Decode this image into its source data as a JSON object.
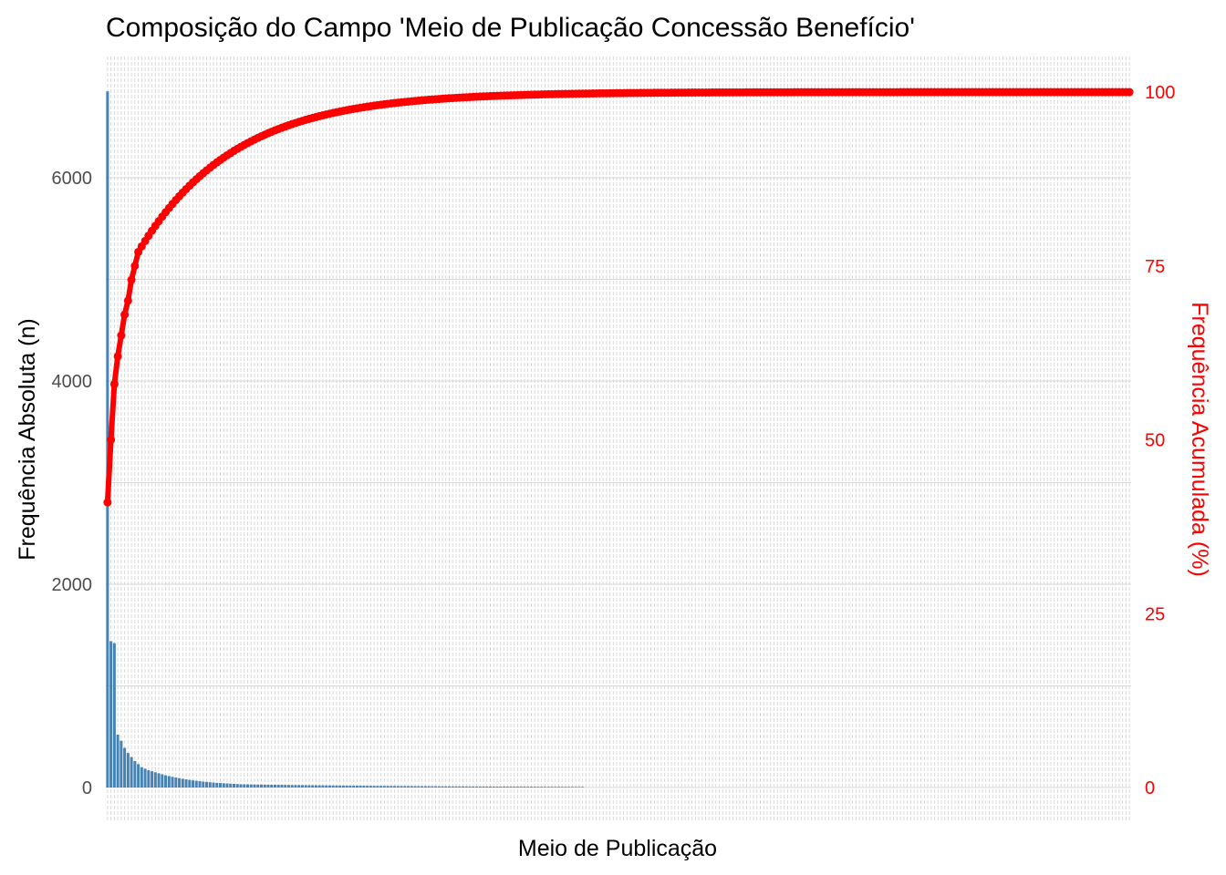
{
  "chart_data": {
    "type": "bar+line",
    "title": "Composição do Campo 'Meio de Publicação Concessão Benefício'",
    "xlabel": "Meio de Publicação",
    "ylabel_left": "Frequência Absoluta (n)",
    "ylabel_right": "Frequência Acumulada (%)",
    "ylim_left": [
      0,
      6900
    ],
    "ylim_right": [
      0,
      100
    ],
    "y_left_ticks": [
      "0",
      "2000",
      "4000",
      "6000"
    ],
    "y_right_ticks": [
      "0",
      "25",
      "50",
      "75",
      "100"
    ],
    "category_count": 300,
    "grid": true,
    "bar_color": "#4682b4",
    "line_color": "#ff0000",
    "grid_color": "#d9d9d9",
    "bar_values_head": [
      6850,
      1440,
      1420,
      520,
      460,
      390,
      340,
      300,
      260,
      230,
      200,
      185,
      170,
      160,
      150,
      140,
      130,
      120,
      112,
      105,
      98,
      92,
      86,
      80,
      75,
      70,
      66,
      62,
      58,
      55,
      52,
      49,
      46,
      44,
      42,
      40,
      38,
      36,
      34,
      32
    ],
    "bar_tail": {
      "start_value": 31,
      "end_value": 6,
      "end_index": 140
    },
    "cumulative_percent_head": [
      41,
      50,
      58,
      62,
      65,
      68,
      70,
      73,
      75,
      77
    ]
  }
}
